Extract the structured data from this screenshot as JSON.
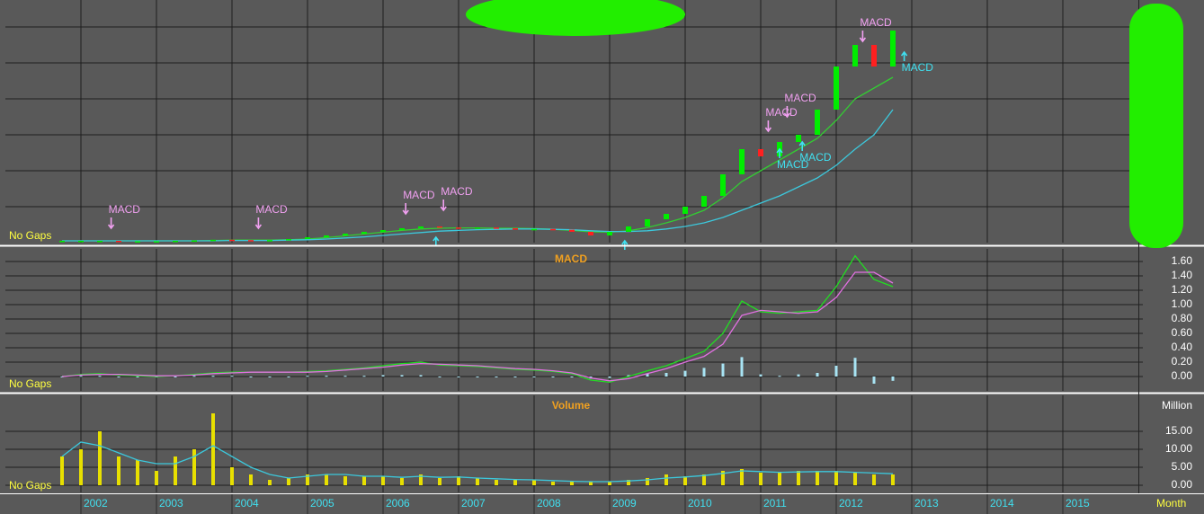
{
  "chart_data": [
    {
      "type": "candlestick",
      "gap_label": "No Gaps",
      "show_tick_labels": false,
      "grid": true,
      "up_color": "#00ee00",
      "down_color": "#ff2020",
      "xlim": [
        2001,
        2016
      ],
      "ylim": [
        0,
        6.7
      ],
      "yticks": [
        1,
        2,
        3,
        4,
        5,
        6
      ],
      "x": [
        2001.75,
        2002,
        2002.25,
        2002.5,
        2002.75,
        2003,
        2003.25,
        2003.5,
        2003.75,
        2004,
        2004.25,
        2004.5,
        2004.75,
        2005,
        2005.25,
        2005.5,
        2005.75,
        2006,
        2006.25,
        2006.5,
        2006.75,
        2007,
        2007.25,
        2007.5,
        2007.75,
        2008,
        2008.25,
        2008.5,
        2008.75,
        2009,
        2009.25,
        2009.5,
        2009.75,
        2010,
        2010.25,
        2010.5,
        2010.75,
        2011,
        2011.25,
        2011.5,
        2011.75,
        2012,
        2012.25,
        2012.5,
        2012.75
      ],
      "values": [
        0.05,
        0.05,
        0.05,
        0.04,
        0.04,
        0.04,
        0.05,
        0.06,
        0.08,
        0.07,
        0.06,
        0.07,
        0.1,
        0.15,
        0.2,
        0.25,
        0.3,
        0.35,
        0.4,
        0.45,
        0.42,
        0.4,
        0.42,
        0.4,
        0.38,
        0.38,
        0.36,
        0.3,
        0.2,
        0.3,
        0.45,
        0.65,
        0.8,
        1.0,
        1.3,
        1.9,
        2.6,
        2.4,
        2.8,
        3.0,
        3.7,
        4.9,
        5.5,
        4.9,
        5.9
      ],
      "lines": [
        {
          "color": "#33cc33",
          "values": [
            0.05,
            0.05,
            0.05,
            0.05,
            0.05,
            0.05,
            0.05,
            0.05,
            0.06,
            0.07,
            0.07,
            0.07,
            0.08,
            0.1,
            0.14,
            0.19,
            0.24,
            0.29,
            0.34,
            0.38,
            0.4,
            0.41,
            0.41,
            0.4,
            0.4,
            0.39,
            0.37,
            0.34,
            0.3,
            0.29,
            0.33,
            0.42,
            0.55,
            0.7,
            0.9,
            1.25,
            1.7,
            2.0,
            2.3,
            2.6,
            2.9,
            3.4,
            4.0,
            4.3,
            4.6
          ]
        },
        {
          "color": "#3cc8dc",
          "values": [
            0.05,
            0.05,
            0.05,
            0.05,
            0.05,
            0.05,
            0.05,
            0.05,
            0.05,
            0.06,
            0.06,
            0.06,
            0.07,
            0.08,
            0.1,
            0.13,
            0.16,
            0.2,
            0.24,
            0.28,
            0.32,
            0.34,
            0.36,
            0.37,
            0.38,
            0.38,
            0.37,
            0.36,
            0.33,
            0.31,
            0.31,
            0.33,
            0.38,
            0.45,
            0.55,
            0.7,
            0.9,
            1.1,
            1.3,
            1.55,
            1.8,
            2.15,
            2.6,
            3.0,
            3.7
          ]
        }
      ],
      "signals": [
        {
          "kind": "sell",
          "label": "MACD",
          "x": 2002.4,
          "y": 0.4,
          "color": "#f0a0f0"
        },
        {
          "kind": "sell",
          "label": "MACD",
          "x": 2004.35,
          "y": 0.4,
          "color": "#f0a0f0"
        },
        {
          "kind": "sell",
          "label": "MACD",
          "x": 2006.3,
          "y": 0.8,
          "color": "#f0a0f0"
        },
        {
          "kind": "sell",
          "label": "MACD",
          "x": 2006.8,
          "y": 0.9,
          "color": "#f0a0f0"
        },
        {
          "kind": "sell",
          "label": "MACD",
          "x": 2011.1,
          "y": 3.1,
          "color": "#f0a0f0"
        },
        {
          "kind": "sell",
          "label": "MACD",
          "x": 2011.35,
          "y": 3.5,
          "color": "#f0a0f0"
        },
        {
          "kind": "sell",
          "label": "MACD",
          "x": 2012.35,
          "y": 5.6,
          "color": "#f0a0f0"
        },
        {
          "kind": "buy",
          "x": 2006.7,
          "y": 0.15,
          "color": "#40e0f0"
        },
        {
          "kind": "buy",
          "x": 2009.2,
          "y": 0.05,
          "color": "#40e0f0"
        },
        {
          "kind": "buy",
          "label": "MACD",
          "x": 2011.25,
          "y": 2.6,
          "color": "#40e0f0"
        },
        {
          "kind": "buy",
          "label": "MACD",
          "x": 2011.55,
          "y": 2.8,
          "color": "#40e0f0"
        },
        {
          "kind": "buy",
          "label": "MACD",
          "x": 2012.9,
          "y": 5.3,
          "color": "#40e0f0"
        }
      ]
    },
    {
      "type": "line",
      "title": "MACD",
      "gap_label": "No Gaps",
      "show_tick_labels": true,
      "grid": true,
      "xlim": [
        2001,
        2016
      ],
      "ylim": [
        -0.2,
        1.75
      ],
      "yticks": [
        {
          "value": 0,
          "label": "0.00"
        },
        {
          "value": 0.2,
          "label": "0.20"
        },
        {
          "value": 0.4,
          "label": "0.40"
        },
        {
          "value": 0.6,
          "label": "0.60"
        },
        {
          "value": 0.8,
          "label": "0.80"
        },
        {
          "value": 1,
          "label": "1.00"
        },
        {
          "value": 1.2,
          "label": "1.20"
        },
        {
          "value": 1.4,
          "label": "1.40"
        },
        {
          "value": 1.6,
          "label": "1.60"
        }
      ],
      "x": [
        2001.75,
        2002,
        2002.25,
        2002.5,
        2002.75,
        2003,
        2003.25,
        2003.5,
        2003.75,
        2004,
        2004.25,
        2004.5,
        2004.75,
        2005,
        2005.25,
        2005.5,
        2005.75,
        2006,
        2006.25,
        2006.5,
        2006.75,
        2007,
        2007.25,
        2007.5,
        2007.75,
        2008,
        2008.25,
        2008.5,
        2008.75,
        2009,
        2009.25,
        2009.5,
        2009.75,
        2010,
        2010.25,
        2010.5,
        2010.75,
        2011,
        2011.25,
        2011.5,
        2011.75,
        2012,
        2012.25,
        2012.5,
        2012.75
      ],
      "series": [
        {
          "color": "#22dd22",
          "values": [
            0.0,
            0.03,
            0.04,
            0.02,
            0.01,
            0.0,
            0.01,
            0.03,
            0.05,
            0.06,
            0.06,
            0.06,
            0.06,
            0.07,
            0.08,
            0.1,
            0.12,
            0.15,
            0.18,
            0.2,
            0.16,
            0.15,
            0.14,
            0.12,
            0.1,
            0.09,
            0.07,
            0.04,
            -0.05,
            -0.08,
            0.0,
            0.08,
            0.15,
            0.25,
            0.35,
            0.6,
            1.05,
            0.9,
            0.88,
            0.9,
            0.92,
            1.25,
            1.68,
            1.35,
            1.25
          ]
        },
        {
          "color": "#e070e0",
          "values": [
            0.0,
            0.02,
            0.03,
            0.03,
            0.02,
            0.01,
            0.01,
            0.02,
            0.04,
            0.05,
            0.06,
            0.06,
            0.06,
            0.06,
            0.07,
            0.09,
            0.11,
            0.13,
            0.16,
            0.18,
            0.17,
            0.16,
            0.15,
            0.13,
            0.11,
            0.1,
            0.08,
            0.05,
            -0.02,
            -0.06,
            -0.03,
            0.04,
            0.11,
            0.2,
            0.28,
            0.45,
            0.85,
            0.92,
            0.9,
            0.88,
            0.9,
            1.1,
            1.45,
            1.45,
            1.3
          ]
        }
      ],
      "bars": {
        "color": "#a8e4f4",
        "values": [
          0,
          0.01,
          0.01,
          -0.01,
          -0.01,
          -0.01,
          0,
          0.01,
          0.01,
          0.01,
          0,
          0,
          0,
          0.01,
          0.01,
          0.01,
          0.01,
          0.02,
          0.02,
          0.02,
          -0.01,
          -0.01,
          -0.01,
          -0.01,
          -0.01,
          -0.01,
          -0.01,
          -0.01,
          -0.03,
          -0.02,
          0.02,
          0.04,
          0.05,
          0.08,
          0.12,
          0.18,
          0.27,
          0.03,
          0.01,
          0.03,
          0.05,
          0.15,
          0.26,
          -0.1,
          -0.06
        ]
      }
    },
    {
      "type": "bar",
      "title": "Volume",
      "unit_label": "Million",
      "gap_label": "No Gaps",
      "show_tick_labels": true,
      "grid": true,
      "color": "#e8e000",
      "x_label": "Month",
      "xlim": [
        2001,
        2016
      ],
      "ylim": [
        -2,
        24.5
      ],
      "yticks": [
        {
          "value": 0,
          "label": "0.00"
        },
        {
          "value": 5,
          "label": "5.00"
        },
        {
          "value": 10,
          "label": "10.00"
        },
        {
          "value": 15,
          "label": "15.00"
        }
      ],
      "xticks": [
        2002,
        2003,
        2004,
        2005,
        2006,
        2007,
        2008,
        2009,
        2010,
        2011,
        2012,
        2013,
        2014,
        2015
      ],
      "x": [
        2001.75,
        2002,
        2002.25,
        2002.5,
        2002.75,
        2003,
        2003.25,
        2003.5,
        2003.75,
        2004,
        2004.25,
        2004.5,
        2004.75,
        2005,
        2005.25,
        2005.5,
        2005.75,
        2006,
        2006.25,
        2006.5,
        2006.75,
        2007,
        2007.25,
        2007.5,
        2007.75,
        2008,
        2008.25,
        2008.5,
        2008.75,
        2009,
        2009.25,
        2009.5,
        2009.75,
        2010,
        2010.25,
        2010.5,
        2010.75,
        2011,
        2011.25,
        2011.5,
        2011.75,
        2012,
        2012.25,
        2012.5,
        2012.75
      ],
      "values": [
        8,
        10,
        15,
        8,
        7,
        4,
        8,
        10,
        20,
        5,
        3,
        1.5,
        2,
        3,
        3,
        2.5,
        2.5,
        2.5,
        2,
        3,
        2,
        2.5,
        2,
        1.5,
        1.5,
        1.5,
        1,
        1,
        1,
        1,
        1.5,
        2,
        3,
        2.5,
        3,
        4,
        4.5,
        3.5,
        3.5,
        4,
        4,
        4,
        3.5,
        3,
        3
      ],
      "lines": [
        {
          "color": "#3cc8dc",
          "values": [
            8,
            12,
            11,
            9,
            7,
            6,
            6,
            8,
            11,
            8,
            5,
            3,
            2,
            2.5,
            3,
            3,
            2.5,
            2.5,
            2.2,
            2.5,
            2.2,
            2.3,
            2,
            1.8,
            1.6,
            1.5,
            1.3,
            1.1,
            1,
            1,
            1.2,
            1.5,
            2,
            2.3,
            2.7,
            3.3,
            4,
            3.8,
            3.6,
            3.7,
            3.8,
            3.8,
            3.6,
            3.4,
            3.2
          ]
        }
      ]
    }
  ]
}
